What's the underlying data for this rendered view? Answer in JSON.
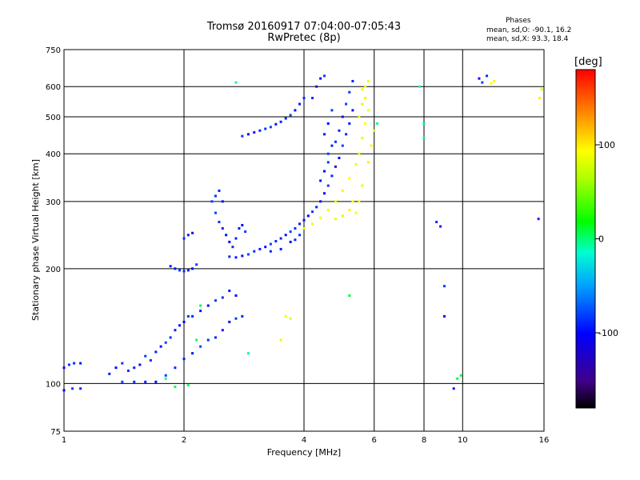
{
  "header": {
    "title": "Tromsø 20160917 07:04:00-07:05:43",
    "subtitle": "RwPretec (8p)"
  },
  "phase_info": {
    "title": "Phases",
    "o_line": "mean, sd,O: -90.1, 16.2",
    "x_line": "mean, sd,X:  93.3, 18.4"
  },
  "colorbar": {
    "label": "[deg]",
    "ticks": [
      "100",
      "0",
      "-100"
    ],
    "tick_values": [
      100,
      0,
      -100
    ],
    "range": [
      -180,
      180
    ],
    "colormap": "rainbow"
  },
  "chart_data": {
    "type": "scatter",
    "xlabel": "Frequency [MHz]",
    "ylabel": "Stationary phase Virtual Height [km]",
    "x_scale": "log",
    "y_scale": "log",
    "xlim": [
      1,
      16
    ],
    "ylim": [
      75,
      750
    ],
    "xticks": [
      1,
      2,
      4,
      6,
      8,
      10,
      16
    ],
    "xtick_labels": [
      "1",
      "2",
      "4",
      "6",
      "8",
      "10",
      "16"
    ],
    "yticks": [
      75,
      100,
      200,
      300,
      400,
      500,
      600,
      750
    ],
    "ytick_labels": [
      "75",
      "100",
      "200",
      "300",
      "400",
      "500",
      "600",
      "750"
    ],
    "grid": true,
    "series": [
      {
        "description_key": "O-mode traces (phase ~ -90 deg)",
        "phase": -90,
        "points": [
          [
            1.0,
            110
          ],
          [
            1.03,
            112
          ],
          [
            1.06,
            113
          ],
          [
            1.1,
            113
          ],
          [
            1.0,
            96
          ],
          [
            1.05,
            97
          ],
          [
            1.1,
            97
          ],
          [
            1.3,
            106
          ],
          [
            1.35,
            110
          ],
          [
            1.4,
            113
          ],
          [
            1.45,
            108
          ],
          [
            1.5,
            110
          ],
          [
            1.55,
            112
          ],
          [
            1.6,
            118
          ],
          [
            1.65,
            115
          ],
          [
            1.7,
            121
          ],
          [
            1.75,
            125
          ],
          [
            1.8,
            128
          ],
          [
            1.85,
            132
          ],
          [
            1.9,
            138
          ],
          [
            1.95,
            142
          ],
          [
            2.0,
            145
          ],
          [
            2.05,
            150
          ],
          [
            2.1,
            150
          ],
          [
            2.2,
            155
          ],
          [
            2.3,
            160
          ],
          [
            2.4,
            165
          ],
          [
            2.5,
            168
          ],
          [
            2.6,
            175
          ],
          [
            2.7,
            170
          ],
          [
            1.4,
            101
          ],
          [
            1.5,
            101
          ],
          [
            1.6,
            101
          ],
          [
            1.7,
            101
          ],
          [
            1.8,
            105
          ],
          [
            1.9,
            110
          ],
          [
            2.0,
            116
          ],
          [
            2.1,
            120
          ],
          [
            2.2,
            125
          ],
          [
            2.3,
            130
          ],
          [
            2.4,
            132
          ],
          [
            2.5,
            138
          ],
          [
            2.6,
            145
          ],
          [
            2.7,
            148
          ],
          [
            2.8,
            150
          ],
          [
            1.85,
            203
          ],
          [
            1.9,
            200
          ],
          [
            1.95,
            198
          ],
          [
            2.0,
            197
          ],
          [
            2.05,
            198
          ],
          [
            2.1,
            200
          ],
          [
            2.15,
            205
          ],
          [
            2.0,
            240
          ],
          [
            2.05,
            245
          ],
          [
            2.1,
            248
          ],
          [
            2.35,
            300
          ],
          [
            2.4,
            310
          ],
          [
            2.45,
            320
          ],
          [
            2.5,
            300
          ],
          [
            2.4,
            280
          ],
          [
            2.45,
            265
          ],
          [
            2.5,
            255
          ],
          [
            2.55,
            245
          ],
          [
            2.6,
            235
          ],
          [
            2.65,
            228
          ],
          [
            2.7,
            240
          ],
          [
            2.75,
            255
          ],
          [
            2.8,
            260
          ],
          [
            2.85,
            250
          ],
          [
            2.6,
            215
          ],
          [
            2.7,
            214
          ],
          [
            2.8,
            216
          ],
          [
            2.9,
            218
          ],
          [
            3.0,
            222
          ],
          [
            3.1,
            225
          ],
          [
            3.2,
            228
          ],
          [
            3.3,
            232
          ],
          [
            3.4,
            236
          ],
          [
            3.5,
            240
          ],
          [
            3.6,
            245
          ],
          [
            3.7,
            250
          ],
          [
            3.8,
            255
          ],
          [
            3.9,
            262
          ],
          [
            4.0,
            268
          ],
          [
            4.1,
            275
          ],
          [
            4.2,
            282
          ],
          [
            4.3,
            290
          ],
          [
            4.4,
            300
          ],
          [
            4.5,
            315
          ],
          [
            4.6,
            330
          ],
          [
            4.7,
            350
          ],
          [
            4.8,
            370
          ],
          [
            4.9,
            390
          ],
          [
            5.0,
            420
          ],
          [
            5.1,
            450
          ],
          [
            5.2,
            480
          ],
          [
            5.3,
            520
          ],
          [
            4.6,
            400
          ],
          [
            4.8,
            430
          ],
          [
            4.9,
            460
          ],
          [
            5.0,
            500
          ],
          [
            5.1,
            540
          ],
          [
            5.2,
            580
          ],
          [
            5.3,
            620
          ],
          [
            4.4,
            340
          ],
          [
            4.5,
            360
          ],
          [
            4.6,
            380
          ],
          [
            4.7,
            420
          ],
          [
            4.5,
            450
          ],
          [
            4.6,
            480
          ],
          [
            4.7,
            520
          ],
          [
            4.2,
            560
          ],
          [
            4.3,
            600
          ],
          [
            4.4,
            630
          ],
          [
            4.5,
            640
          ],
          [
            4.0,
            560
          ],
          [
            3.9,
            540
          ],
          [
            3.8,
            520
          ],
          [
            3.7,
            505
          ],
          [
            3.6,
            495
          ],
          [
            3.5,
            485
          ],
          [
            3.4,
            478
          ],
          [
            3.3,
            470
          ],
          [
            3.2,
            465
          ],
          [
            3.1,
            460
          ],
          [
            3.0,
            455
          ],
          [
            2.9,
            450
          ],
          [
            2.8,
            445
          ],
          [
            3.3,
            222
          ],
          [
            3.5,
            225
          ],
          [
            3.7,
            235
          ],
          [
            3.9,
            245
          ],
          [
            3.8,
            238
          ],
          [
            9.5,
            97
          ],
          [
            9.0,
            150
          ],
          [
            9.0,
            180
          ],
          [
            8.6,
            265
          ],
          [
            8.8,
            258
          ],
          [
            11.0,
            630
          ],
          [
            11.2,
            615
          ],
          [
            11.5,
            640
          ],
          [
            15.5,
            270
          ]
        ]
      },
      {
        "description_key": "X-mode traces (phase ~ +90 deg)",
        "phase": 90,
        "points": [
          [
            4.0,
            255
          ],
          [
            4.2,
            262
          ],
          [
            4.4,
            272
          ],
          [
            4.6,
            285
          ],
          [
            4.8,
            300
          ],
          [
            5.0,
            320
          ],
          [
            5.2,
            345
          ],
          [
            5.4,
            375
          ],
          [
            5.5,
            400
          ],
          [
            5.6,
            440
          ],
          [
            5.7,
            480
          ],
          [
            5.8,
            520
          ],
          [
            5.7,
            560
          ],
          [
            5.6,
            590
          ],
          [
            5.4,
            280
          ],
          [
            5.5,
            300
          ],
          [
            5.6,
            330
          ],
          [
            5.8,
            380
          ],
          [
            5.9,
            420
          ],
          [
            6.0,
            460
          ],
          [
            5.5,
            500
          ],
          [
            5.6,
            540
          ],
          [
            5.7,
            600
          ],
          [
            5.8,
            620
          ],
          [
            4.8,
            270
          ],
          [
            5.0,
            275
          ],
          [
            5.2,
            285
          ],
          [
            5.3,
            300
          ],
          [
            3.6,
            150
          ],
          [
            3.7,
            148
          ],
          [
            3.5,
            130
          ],
          [
            11.8,
            612
          ],
          [
            12.0,
            620
          ],
          [
            15.8,
            590
          ],
          [
            15.6,
            560
          ]
        ]
      },
      {
        "description_key": "Scattered mixed-phase points",
        "phase": 0,
        "points": [
          [
            2.7,
            615
          ],
          [
            2.2,
            160
          ],
          [
            2.15,
            130
          ],
          [
            2.9,
            120
          ],
          [
            1.8,
            103
          ],
          [
            1.9,
            98
          ],
          [
            2.05,
            99
          ],
          [
            8.0,
            480
          ],
          [
            8.0,
            440
          ],
          [
            9.7,
            103
          ],
          [
            9.9,
            105
          ],
          [
            6.1,
            480
          ],
          [
            7.8,
            600
          ],
          [
            5.2,
            170
          ]
        ]
      }
    ]
  }
}
